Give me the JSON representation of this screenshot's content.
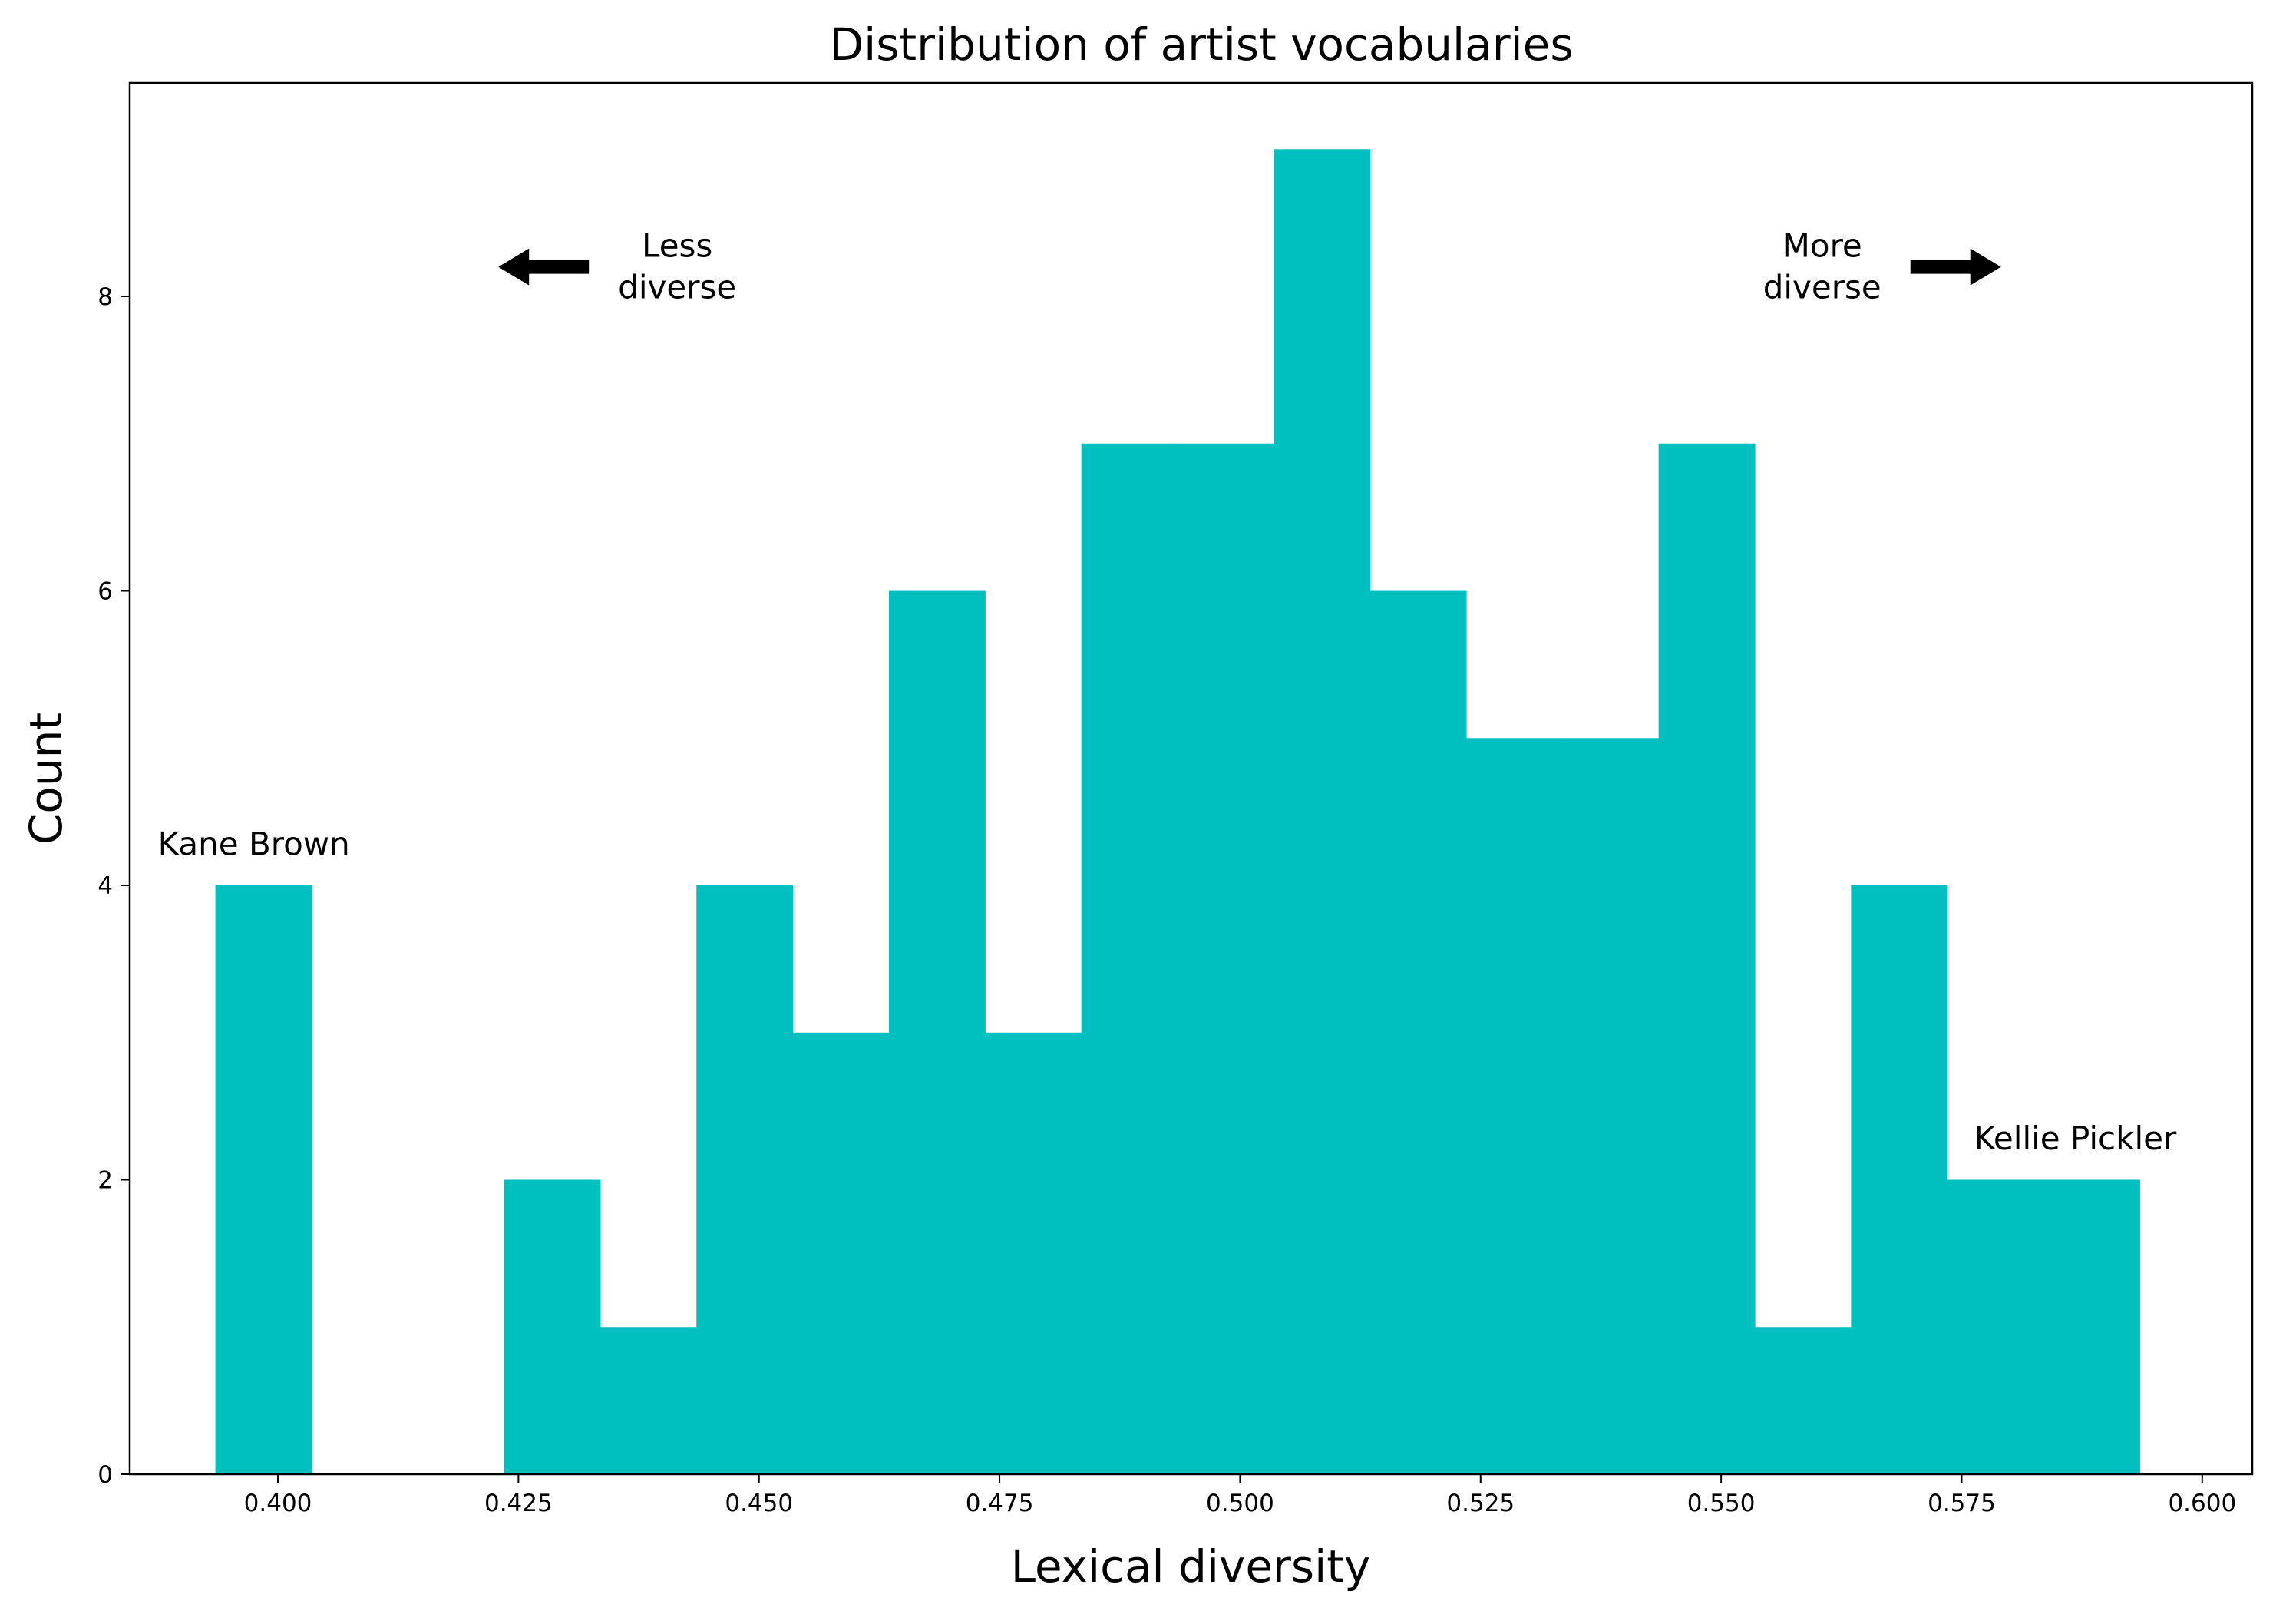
{
  "chart_data": {
    "type": "bar",
    "title": "Distribution of artist vocabularies",
    "xlabel": "Lexical diversity",
    "ylabel": "Count",
    "xlim": [
      0.3846,
      0.6052
    ],
    "ylim": [
      0,
      9.45
    ],
    "xticks": [
      0.4,
      0.425,
      0.45,
      0.475,
      0.5,
      0.525,
      0.55,
      0.575,
      0.6
    ],
    "xtick_labels": [
      "0.400",
      "0.425",
      "0.450",
      "0.475",
      "0.500",
      "0.525",
      "0.550",
      "0.575",
      "0.600"
    ],
    "yticks": [
      0,
      2,
      4,
      6,
      8
    ],
    "ytick_labels": [
      "0",
      "2",
      "4",
      "6",
      "8"
    ],
    "bin_edges": [
      0.3935,
      0.4035,
      0.4135,
      0.4235,
      0.4335,
      0.4435,
      0.4535,
      0.4635,
      0.4735,
      0.4835,
      0.4935,
      0.5035,
      0.5135,
      0.5235,
      0.5335,
      0.5435,
      0.5535,
      0.5635,
      0.5735,
      0.5835,
      0.5935
    ],
    "values": [
      4,
      0,
      0,
      2,
      1,
      4,
      3,
      6,
      3,
      7,
      7,
      9,
      6,
      5,
      5,
      7,
      1,
      4,
      2,
      2
    ],
    "bar_color": "#00BFBF",
    "grid": false,
    "annotations": [
      {
        "lines": [
          "Kane Brown"
        ],
        "x": 0.3975,
        "y": 4.28,
        "align": "middle"
      },
      {
        "lines": [
          "Kellie Pickler"
        ],
        "x": 0.5868,
        "y": 2.28,
        "align": "middle"
      },
      {
        "lines": [
          "Less",
          "diverse"
        ],
        "x": 0.4415,
        "y": 8.2,
        "align": "middle",
        "arrow": "left"
      },
      {
        "lines": [
          "More",
          "diverse"
        ],
        "x": 0.5605,
        "y": 8.2,
        "align": "middle",
        "arrow": "right"
      }
    ]
  }
}
